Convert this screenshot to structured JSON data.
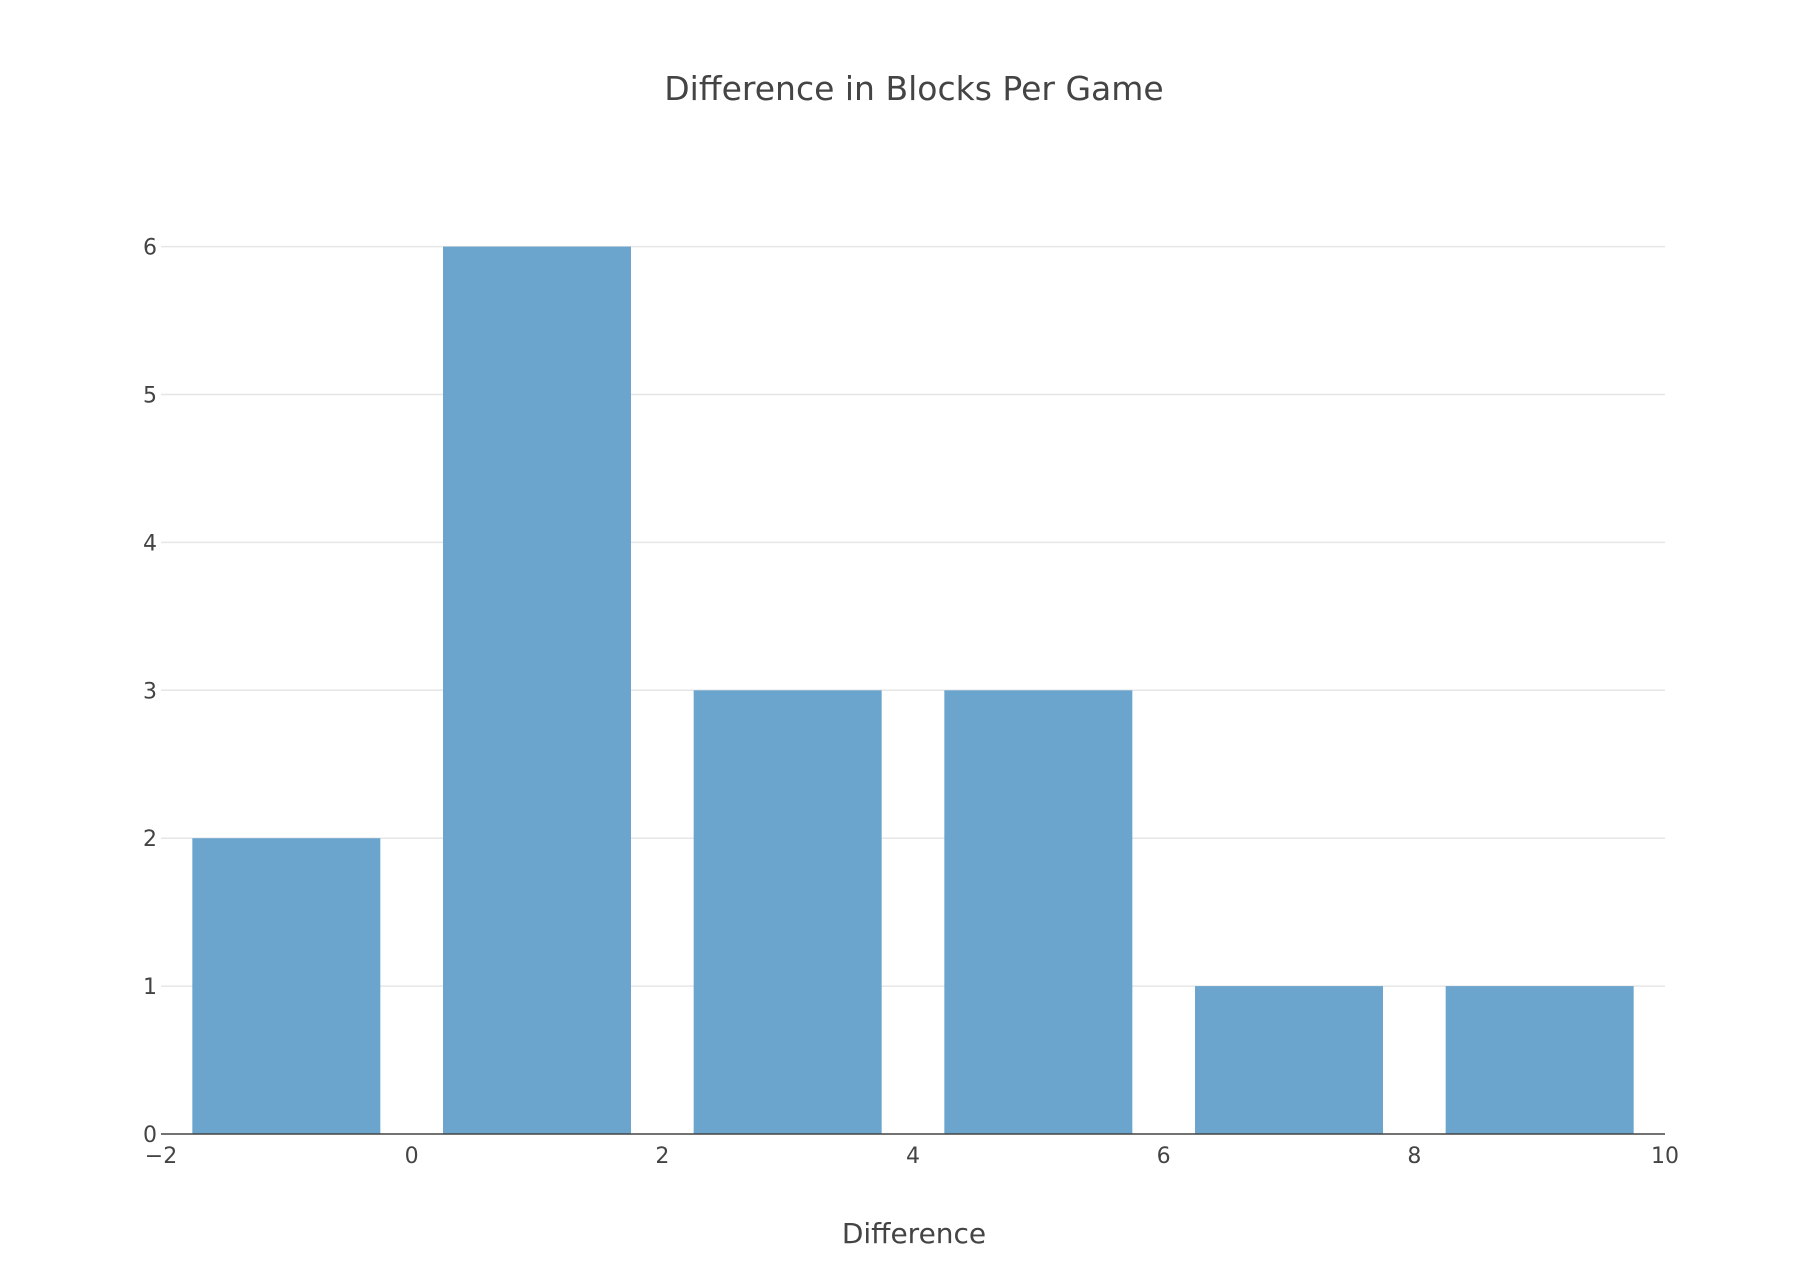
{
  "chart_data": {
    "type": "bar",
    "title": "Difference in Blocks Per Game",
    "xlabel": "Difference",
    "ylabel": "",
    "bins": [
      {
        "start": -2,
        "end": 0,
        "count": 2
      },
      {
        "start": 0,
        "end": 2,
        "count": 6
      },
      {
        "start": 2,
        "end": 4,
        "count": 3
      },
      {
        "start": 4,
        "end": 6,
        "count": 3
      },
      {
        "start": 6,
        "end": 8,
        "count": 1
      },
      {
        "start": 8,
        "end": 10,
        "count": 1
      }
    ],
    "xlim": [
      -2,
      10
    ],
    "ylim": [
      0,
      6.5
    ],
    "xticks": [
      "−2",
      "0",
      "2",
      "4",
      "6",
      "8",
      "10"
    ],
    "xtick_values": [
      -2,
      0,
      2,
      4,
      6,
      8,
      10
    ],
    "yticks": [
      "0",
      "1",
      "2",
      "3",
      "4",
      "5",
      "6"
    ],
    "ytick_values": [
      0,
      1,
      2,
      3,
      4,
      5,
      6
    ],
    "grid": true,
    "bar_color": "#6ba4cc"
  }
}
